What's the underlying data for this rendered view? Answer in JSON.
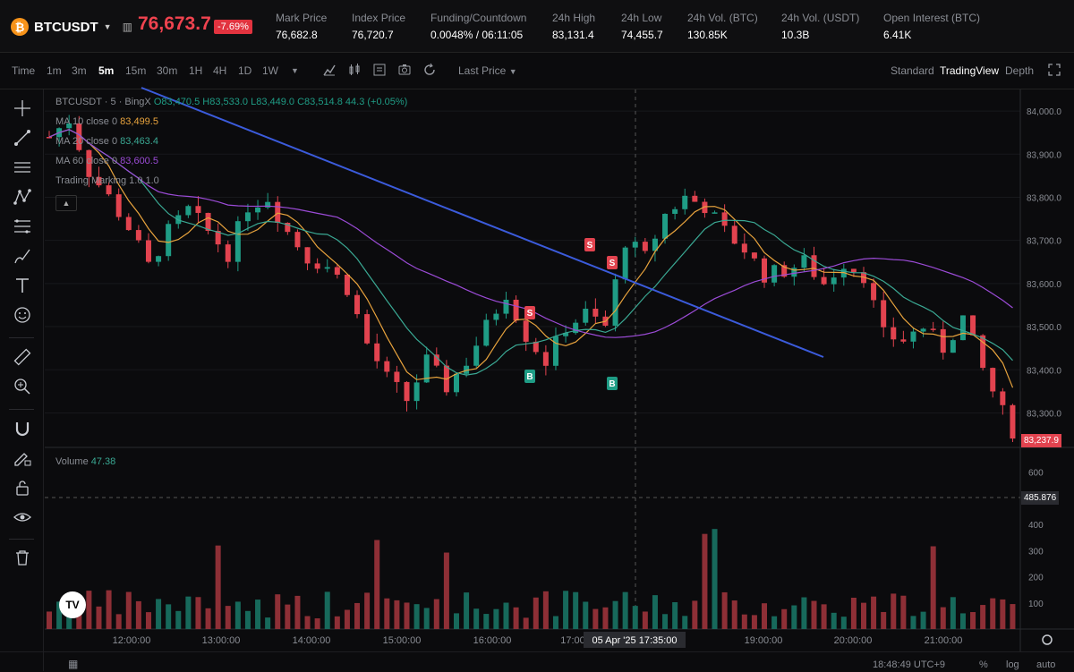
{
  "header": {
    "symbol": "BTCUSDT",
    "price": "76,673.7",
    "change": "-7.69%",
    "stats": [
      {
        "label": "Mark Price",
        "value": "76,682.8"
      },
      {
        "label": "Index Price",
        "value": "76,720.7"
      },
      {
        "label": "Funding/Countdown",
        "value": "0.0048% / 06:11:05"
      },
      {
        "label": "24h High",
        "value": "83,131.4"
      },
      {
        "label": "24h Low",
        "value": "74,455.7"
      },
      {
        "label": "24h Vol. (BTC)",
        "value": "130.85K"
      },
      {
        "label": "24h Vol. (USDT)",
        "value": "10.3B"
      },
      {
        "label": "Open Interest (BTC)",
        "value": "6.41K"
      }
    ]
  },
  "toolbar": {
    "intervals": [
      "Time",
      "1m",
      "3m",
      "5m",
      "15m",
      "30m",
      "1H",
      "4H",
      "1D",
      "1W"
    ],
    "active_interval": "5m",
    "price_type": "Last Price",
    "views": [
      "Standard",
      "TradingView",
      "Depth"
    ],
    "active_view": "TradingView"
  },
  "legend": {
    "title": "BTCUSDT · 5 · BingX",
    "ohlc": "O83,470.5 H83,533.0 L83,449.0 C83,514.8 44.3 (+0.05%)",
    "ma10_label": "MA 10 close 0",
    "ma10_value": "83,499.5",
    "ma20_label": "MA 20 close 0",
    "ma20_value": "83,463.4",
    "ma60_label": "MA 60 close 0",
    "ma60_value": "83,600.5",
    "marking_label": "Trading Marking",
    "marking_value": "1.0 1.0"
  },
  "volume": {
    "label": "Volume",
    "value": "47.38",
    "crosshair_value": "485.876"
  },
  "price_axis": [
    "84,000.0",
    "83,900.0",
    "83,800.0",
    "83,700.0",
    "83,600.0",
    "83,500.0",
    "83,400.0",
    "83,300.0"
  ],
  "current_price_label": "83,237.9",
  "volume_axis": [
    "600",
    "400",
    "300",
    "200",
    "100"
  ],
  "time_axis": [
    "12:00:00",
    "13:00:00",
    "14:00:00",
    "15:00:00",
    "16:00:00",
    "17:00",
    "19:00:00",
    "20:00:00",
    "21:00:00"
  ],
  "crosshair_time": "05 Apr '25    17:35:00",
  "footer": {
    "clock": "18:48:49 UTC+9",
    "pct": "%",
    "log": "log",
    "auto": "auto"
  },
  "colors": {
    "up": "#1f9c85",
    "down": "#e2434f",
    "ma10": "#e8a33d",
    "ma20": "#3aa893",
    "ma60": "#9b4bd6",
    "trend": "#3b5bdb"
  },
  "chart_data": {
    "type": "candlestick",
    "interval": "5m",
    "y_range": [
      83220,
      84050
    ],
    "signals": [
      "S",
      "S",
      "S",
      "B",
      "B"
    ]
  }
}
